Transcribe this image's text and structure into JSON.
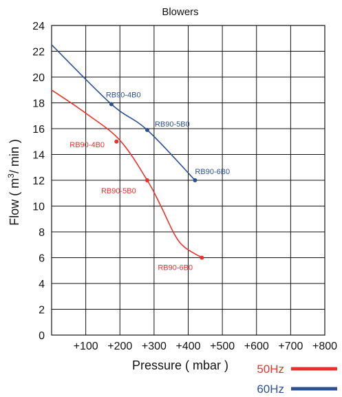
{
  "chart_data": {
    "type": "line",
    "title": "Blowers",
    "xlabel": "Pressure ( mbar )",
    "ylabel_main": "Flow ( m",
    "ylabel_sup": "3",
    "ylabel_end": "/ min )",
    "xlim": [
      0,
      800
    ],
    "ylim": [
      0,
      24
    ],
    "x_ticks": [
      {
        "value": 100,
        "label": "+100"
      },
      {
        "value": 200,
        "label": "+200"
      },
      {
        "value": 300,
        "label": "+300"
      },
      {
        "value": 400,
        "label": "+400"
      },
      {
        "value": 500,
        "label": "+500"
      },
      {
        "value": 600,
        "label": "+600"
      },
      {
        "value": 700,
        "label": "+700"
      },
      {
        "value": 800,
        "label": "+800"
      }
    ],
    "y_ticks": [
      {
        "value": 0,
        "label": "0"
      },
      {
        "value": 2,
        "label": "2"
      },
      {
        "value": 4,
        "label": "4"
      },
      {
        "value": 6,
        "label": "6"
      },
      {
        "value": 8,
        "label": "8"
      },
      {
        "value": 10,
        "label": "10"
      },
      {
        "value": 12,
        "label": "12"
      },
      {
        "value": 14,
        "label": "14"
      },
      {
        "value": 16,
        "label": "16"
      },
      {
        "value": 18,
        "label": "18"
      },
      {
        "value": 20,
        "label": "20"
      },
      {
        "value": 22,
        "label": "22"
      },
      {
        "value": 24,
        "label": "24"
      }
    ],
    "grid": true,
    "legend_position": "bottom-right",
    "series": [
      {
        "name": "50Hz",
        "color": "#e8322c",
        "curve": [
          [
            0,
            19.0
          ],
          [
            100,
            17.2
          ],
          [
            200,
            15.1
          ],
          [
            280,
            12.0
          ],
          [
            320,
            10.0
          ],
          [
            360,
            7.8
          ],
          [
            390,
            6.8
          ],
          [
            440,
            6.0
          ]
        ],
        "points": [
          {
            "x": 190,
            "y": 15.0,
            "label": "RB90-4B0"
          },
          {
            "x": 280,
            "y": 12.0,
            "label": "RB90-5B0"
          },
          {
            "x": 440,
            "y": 6.0,
            "label": "RB90-6B0"
          }
        ]
      },
      {
        "name": "60Hz",
        "color": "#2d4f94",
        "curve": [
          [
            0,
            22.5
          ],
          [
            175,
            17.9
          ],
          [
            280,
            15.9
          ],
          [
            420,
            12.0
          ]
        ],
        "points": [
          {
            "x": 175,
            "y": 17.9,
            "label": "RB90-4B0"
          },
          {
            "x": 280,
            "y": 15.9,
            "label": "RB90-5B0"
          },
          {
            "x": 420,
            "y": 12.0,
            "label": "RB90-6B0"
          }
        ]
      }
    ]
  }
}
